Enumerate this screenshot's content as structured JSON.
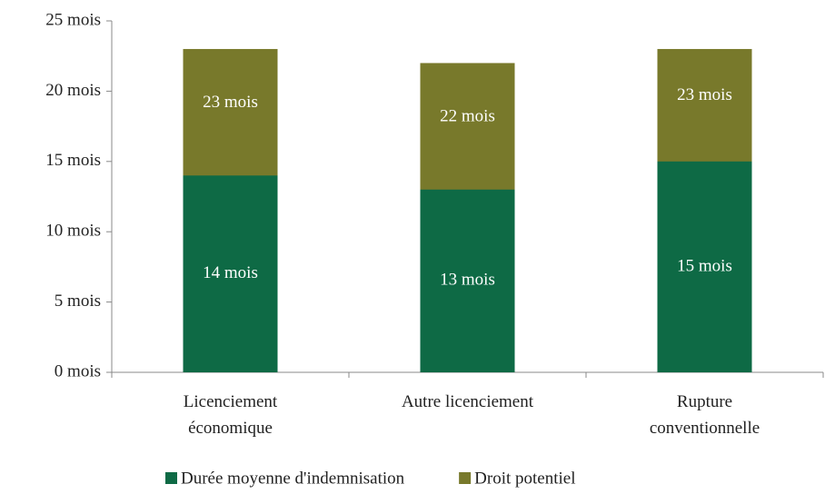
{
  "chart_data": {
    "type": "bar",
    "overlap": true,
    "categories": [
      "Licenciement\néconomique",
      "Autre licenciement",
      "Rupture\nconventionnelle"
    ],
    "series": [
      {
        "name": "Droit potentiel",
        "color": "#78792b",
        "values": [
          23,
          22,
          23
        ],
        "value_labels": [
          "23 mois",
          "22 mois",
          "23 mois"
        ]
      },
      {
        "name": "Durée moyenne d'indemnisation",
        "color": "#0e6a45",
        "values": [
          14,
          13,
          15
        ],
        "value_labels": [
          "14 mois",
          "13 mois",
          "15 mois"
        ]
      }
    ],
    "legend_order": [
      1,
      0
    ],
    "ylim": [
      0,
      25
    ],
    "yticks": [
      {
        "value": 0,
        "label": "0 mois"
      },
      {
        "value": 5,
        "label": "5 mois"
      },
      {
        "value": 10,
        "label": "10 mois"
      },
      {
        "value": 15,
        "label": "15 mois"
      },
      {
        "value": 20,
        "label": "20 mois"
      },
      {
        "value": 25,
        "label": "25 mois"
      }
    ],
    "legend": "bottom",
    "grid": false
  }
}
